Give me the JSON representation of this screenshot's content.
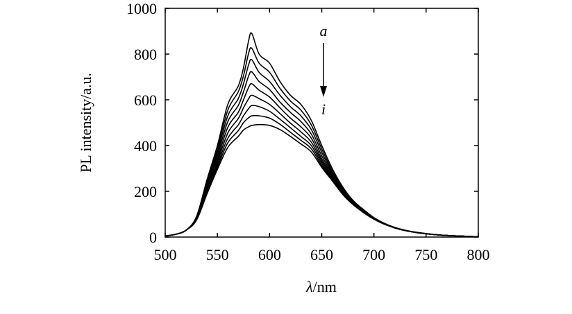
{
  "chart_data": {
    "type": "line",
    "title": "",
    "xlabel_symbol": "λ",
    "xlabel_unit": "/nm",
    "ylabel": "PL intensity/a.u.",
    "xlim": [
      500,
      800
    ],
    "ylim": [
      0,
      1000
    ],
    "xticks": [
      500,
      550,
      600,
      650,
      700,
      750,
      800
    ],
    "yticks": [
      0,
      200,
      400,
      600,
      800,
      1000
    ],
    "grid": false,
    "legend": "none",
    "annotations": {
      "arrow_top_label": "a",
      "arrow_bottom_label": "i"
    },
    "x": [
      500,
      510,
      520,
      530,
      540,
      550,
      560,
      570,
      575,
      580,
      583,
      590,
      600,
      610,
      620,
      630,
      640,
      650,
      660,
      670,
      680,
      690,
      700,
      710,
      720,
      730,
      740,
      750,
      760,
      770,
      780,
      790,
      800
    ],
    "series": [
      {
        "values": [
          5,
          12,
          30,
          90,
          250,
          400,
          580,
          660,
          740,
          860,
          890,
          800,
          760,
          680,
          620,
          580,
          510,
          400,
          300,
          220,
          160,
          120,
          85,
          60,
          42,
          30,
          21,
          15,
          10,
          7,
          5,
          3,
          2
        ]
      },
      {
        "values": [
          5,
          12,
          30,
          88,
          240,
          385,
          555,
          635,
          705,
          805,
          825,
          760,
          720,
          650,
          595,
          555,
          490,
          385,
          290,
          215,
          158,
          118,
          84,
          60,
          42,
          30,
          21,
          15,
          10,
          7,
          5,
          3,
          2
        ]
      },
      {
        "values": [
          5,
          12,
          30,
          86,
          230,
          370,
          530,
          605,
          670,
          755,
          775,
          720,
          680,
          620,
          570,
          530,
          470,
          370,
          282,
          210,
          155,
          116,
          83,
          59,
          41,
          29,
          21,
          15,
          10,
          7,
          5,
          3,
          2
        ]
      },
      {
        "values": [
          5,
          12,
          30,
          84,
          222,
          355,
          505,
          575,
          635,
          705,
          722,
          680,
          645,
          590,
          545,
          505,
          450,
          355,
          275,
          205,
          152,
          114,
          82,
          59,
          41,
          29,
          21,
          15,
          10,
          7,
          5,
          3,
          2
        ]
      },
      {
        "values": [
          5,
          12,
          30,
          82,
          214,
          340,
          480,
          545,
          600,
          655,
          670,
          642,
          612,
          565,
          520,
          482,
          432,
          342,
          268,
          200,
          150,
          112,
          81,
          58,
          41,
          29,
          21,
          15,
          10,
          7,
          5,
          3,
          2
        ]
      },
      {
        "values": [
          5,
          12,
          30,
          80,
          206,
          328,
          455,
          518,
          565,
          605,
          620,
          605,
          580,
          540,
          498,
          460,
          415,
          332,
          262,
          196,
          148,
          110,
          80,
          58,
          40,
          29,
          21,
          15,
          10,
          7,
          5,
          3,
          2
        ]
      },
      {
        "values": [
          5,
          12,
          30,
          78,
          200,
          316,
          432,
          490,
          530,
          562,
          575,
          570,
          550,
          515,
          478,
          440,
          400,
          322,
          256,
          193,
          146,
          109,
          79,
          57,
          40,
          28,
          20,
          14,
          10,
          7,
          5,
          3,
          2
        ]
      },
      {
        "values": [
          5,
          12,
          30,
          76,
          194,
          306,
          412,
          465,
          500,
          522,
          530,
          530,
          520,
          493,
          458,
          423,
          386,
          313,
          251,
          190,
          144,
          108,
          79,
          57,
          40,
          28,
          20,
          14,
          10,
          7,
          5,
          3,
          2
        ]
      },
      {
        "values": [
          5,
          12,
          30,
          74,
          188,
          296,
          392,
          440,
          468,
          482,
          488,
          492,
          488,
          470,
          440,
          407,
          372,
          305,
          246,
          187,
          142,
          107,
          78,
          56,
          40,
          28,
          20,
          14,
          10,
          7,
          5,
          3,
          2
        ]
      }
    ]
  }
}
